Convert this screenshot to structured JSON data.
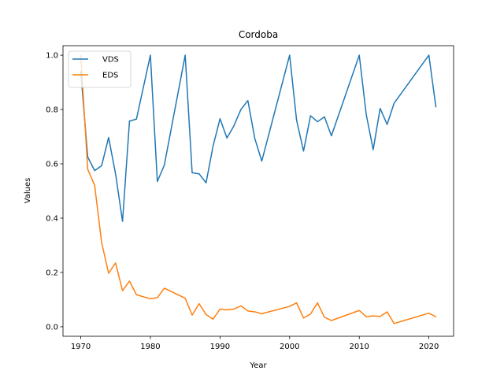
{
  "chart_data": {
    "type": "line",
    "title": "Cordoba",
    "xlabel": "Year",
    "ylabel": "Values",
    "xlim": [
      1967.45,
      2023.55
    ],
    "ylim": [
      -0.035,
      1.035
    ],
    "xticks": [
      1970,
      1980,
      1990,
      2000,
      2010,
      2020
    ],
    "yticks": [
      0.0,
      0.2,
      0.4,
      0.6,
      0.8,
      1.0
    ],
    "xtick_labels": [
      "1970",
      "1980",
      "1990",
      "2000",
      "2010",
      "2020"
    ],
    "ytick_labels": [
      "0.0",
      "0.2",
      "0.4",
      "0.6",
      "0.8",
      "1.0"
    ],
    "legend_position": "top-left",
    "series": [
      {
        "name": "VDS",
        "color": "#1f77b4",
        "x": [
          1970,
          1971,
          1972,
          1973,
          1974,
          1975,
          1976,
          1977,
          1978,
          1980,
          1981,
          1982,
          1985,
          1986,
          1987,
          1988,
          1989,
          1990,
          1991,
          1992,
          1993,
          1994,
          1995,
          1996,
          2000,
          2001,
          2002,
          2003,
          2004,
          2005,
          2006,
          2010,
          2011,
          2012,
          2013,
          2014,
          2015,
          2020,
          2021
        ],
        "values": [
          0.94,
          0.625,
          0.575,
          0.593,
          0.697,
          0.563,
          0.388,
          0.757,
          0.765,
          1.0,
          0.535,
          0.595,
          1.0,
          0.567,
          0.563,
          0.53,
          0.665,
          0.766,
          0.695,
          0.74,
          0.8,
          0.833,
          0.693,
          0.61,
          1.0,
          0.76,
          0.647,
          0.777,
          0.755,
          0.773,
          0.703,
          1.0,
          0.782,
          0.652,
          0.804,
          0.745,
          0.823,
          1.0,
          0.81
        ]
      },
      {
        "name": "EDS",
        "color": "#ff7f0e",
        "x": [
          1970,
          1971,
          1972,
          1973,
          1974,
          1975,
          1976,
          1977,
          1978,
          1980,
          1981,
          1982,
          1985,
          1986,
          1987,
          1988,
          1989,
          1990,
          1991,
          1992,
          1993,
          1994,
          1995,
          1996,
          2000,
          2001,
          2002,
          2003,
          2004,
          2005,
          2006,
          2010,
          2011,
          2012,
          2013,
          2014,
          2015,
          2020,
          2021
        ],
        "values": [
          1.0,
          0.58,
          0.52,
          0.31,
          0.197,
          0.235,
          0.133,
          0.168,
          0.118,
          0.103,
          0.107,
          0.142,
          0.105,
          0.043,
          0.085,
          0.045,
          0.028,
          0.065,
          0.062,
          0.065,
          0.077,
          0.058,
          0.055,
          0.048,
          0.075,
          0.088,
          0.032,
          0.047,
          0.088,
          0.035,
          0.023,
          0.06,
          0.037,
          0.04,
          0.038,
          0.055,
          0.012,
          0.05,
          0.037
        ]
      }
    ]
  }
}
